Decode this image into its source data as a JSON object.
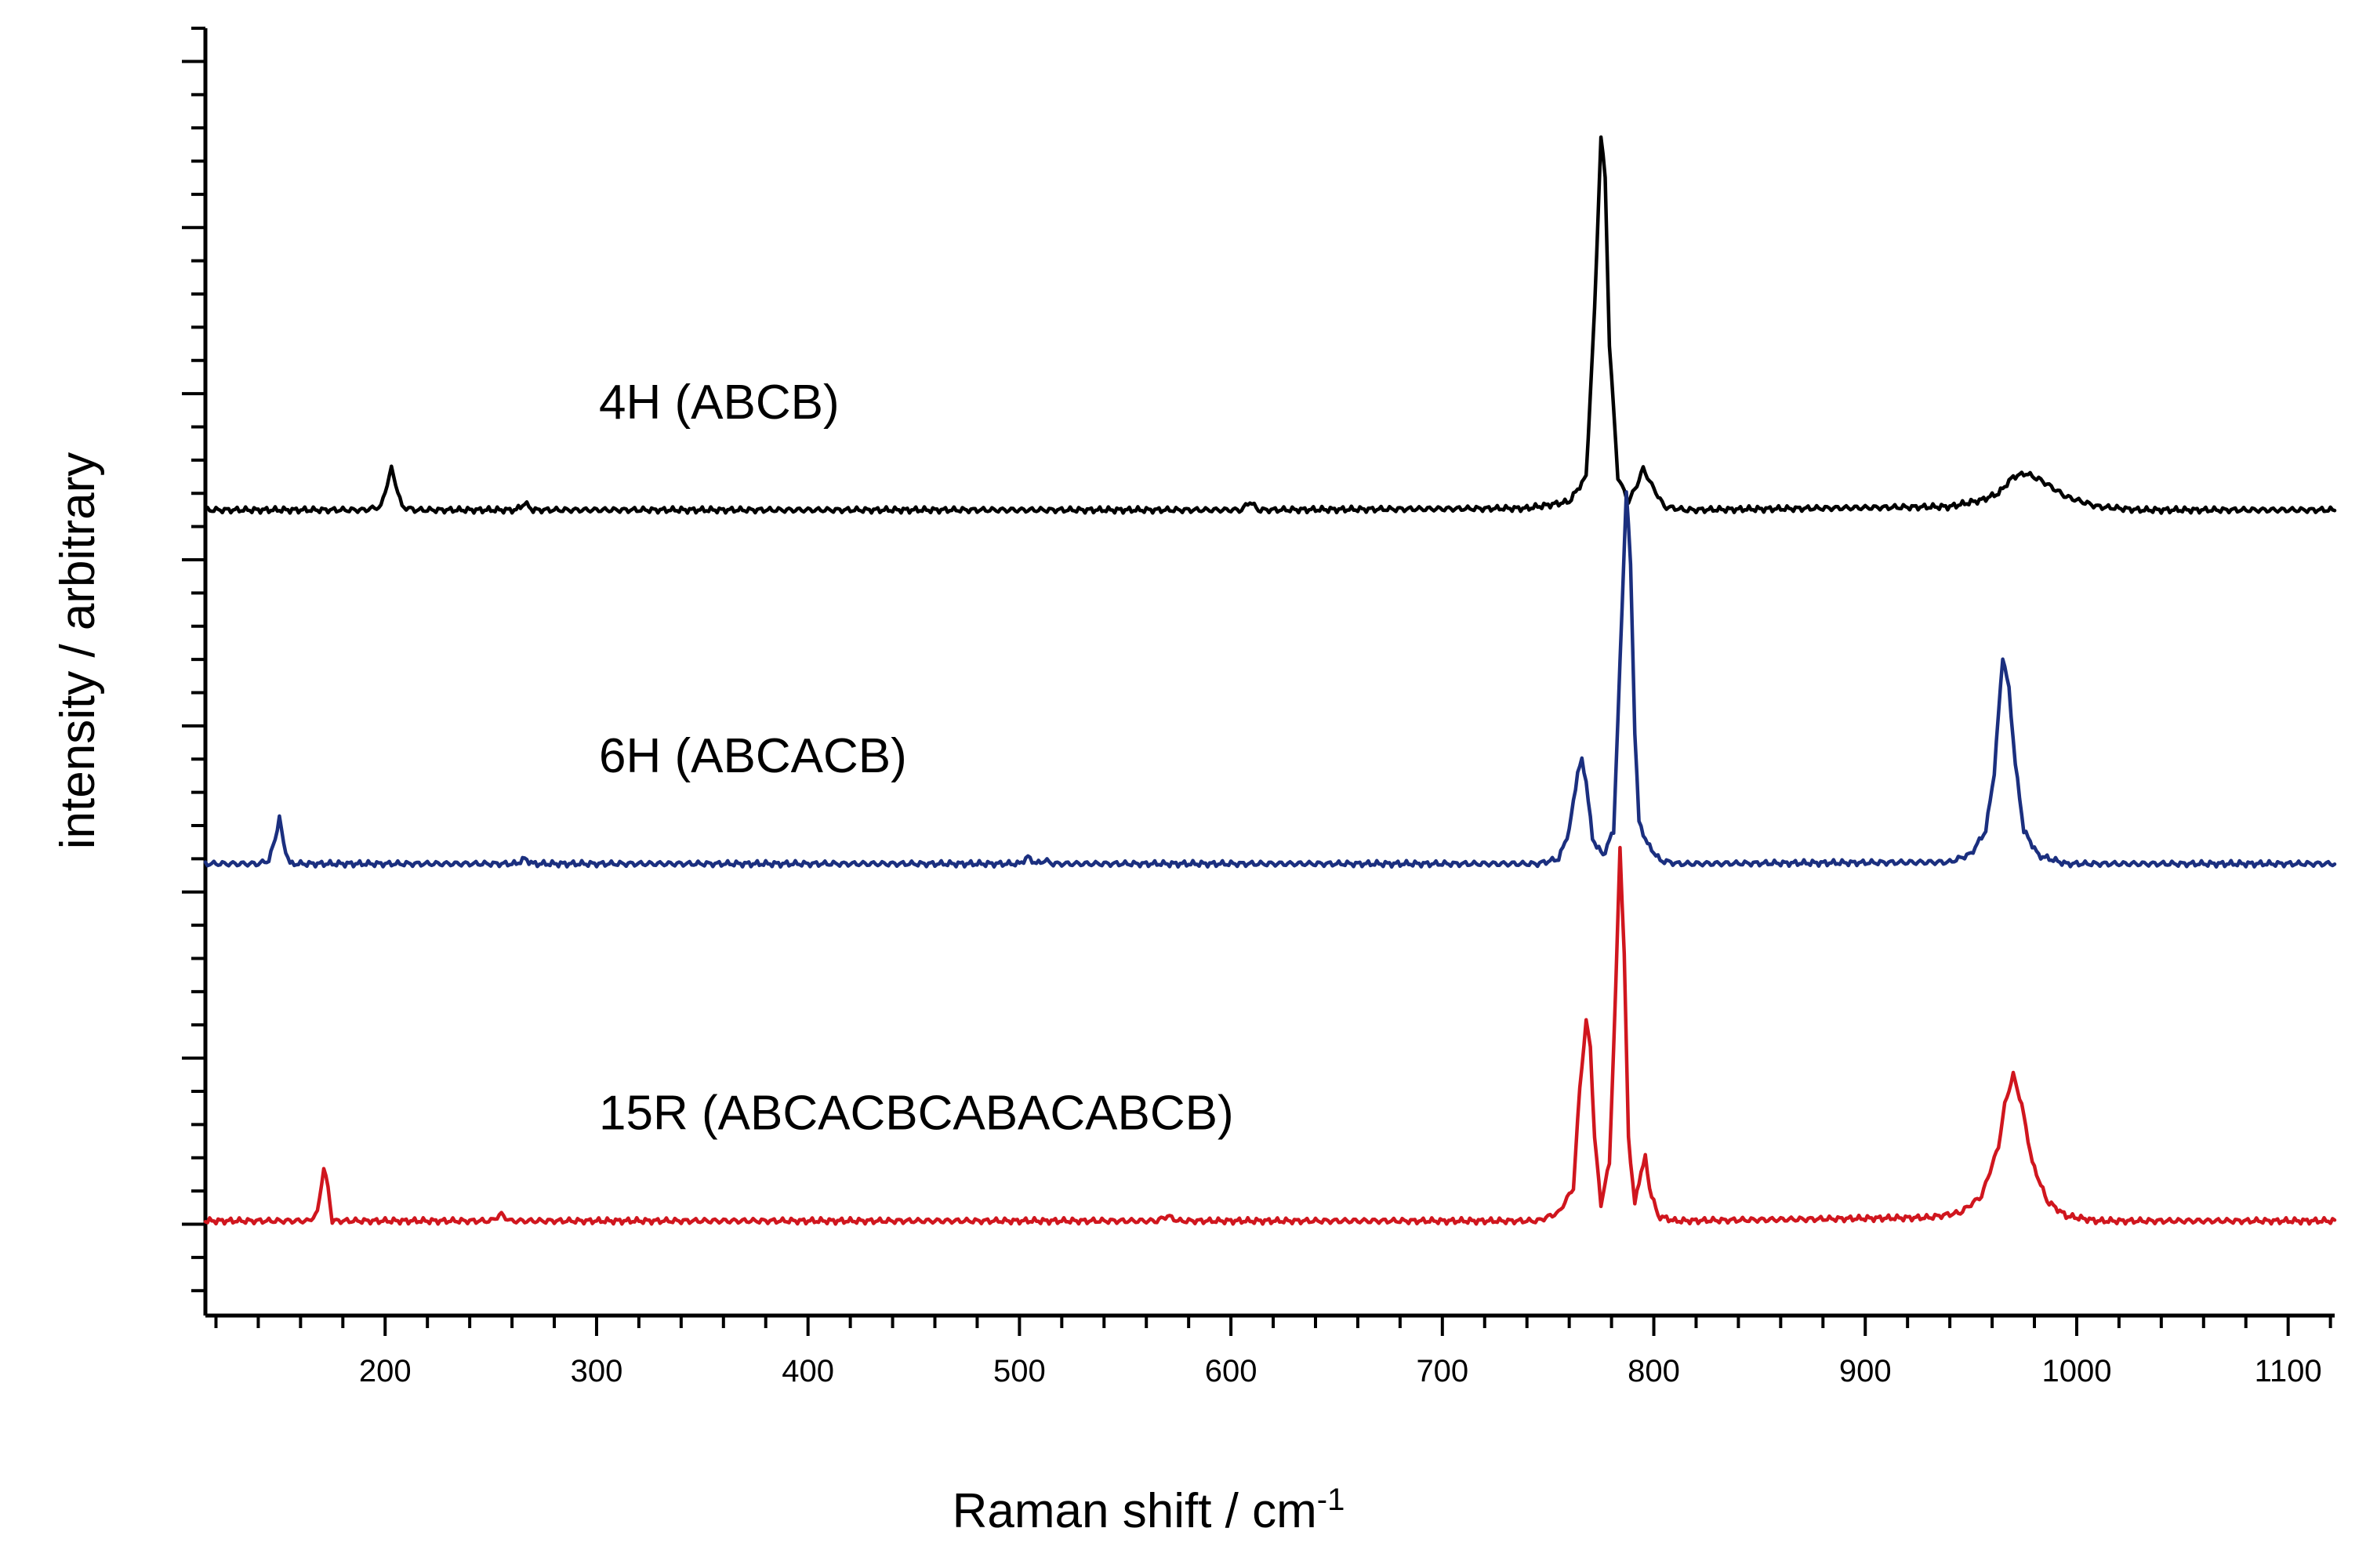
{
  "chart_data": {
    "type": "line",
    "xlabel": "Raman shift / cm",
    "xlabel_superscript": "-1",
    "ylabel": "intensity / arbitrary",
    "xlim": [
      115,
      1122
    ],
    "ylim": [
      -0.55,
      7.2
    ],
    "x_ticks": [
      200,
      300,
      400,
      500,
      600,
      700,
      800,
      900,
      1000,
      1100
    ],
    "x_tick_labels": [
      "200",
      "300",
      "400",
      "500",
      "600",
      "700",
      "800",
      "900",
      "1000",
      "1100"
    ],
    "x_minor_step": 20,
    "y_major_step": 1,
    "y_minor_step": 0.2,
    "y_ticks_labeled": false,
    "grid": false,
    "legend": "none",
    "series": [
      {
        "name": "4H (ABCB)",
        "color": "#000000",
        "baseline": 4.3,
        "points": [
          [
            115,
            0
          ],
          [
            190,
            0
          ],
          [
            198,
            0.02
          ],
          [
            203,
            0.25
          ],
          [
            208,
            0.02
          ],
          [
            214,
            0
          ],
          [
            262,
            0
          ],
          [
            266,
            0.04
          ],
          [
            270,
            0
          ],
          [
            605,
            0
          ],
          [
            609,
            0.05
          ],
          [
            613,
            0
          ],
          [
            740,
            0.01
          ],
          [
            760,
            0.05
          ],
          [
            768,
            0.2
          ],
          [
            772,
            1.2
          ],
          [
            775,
            2.25
          ],
          [
            777,
            2.0
          ],
          [
            779,
            1.0
          ],
          [
            783,
            0.2
          ],
          [
            788,
            0.05
          ],
          [
            792,
            0.15
          ],
          [
            795,
            0.25
          ],
          [
            799,
            0.15
          ],
          [
            805,
            0.02
          ],
          [
            815,
            0
          ],
          [
            940,
            0.02
          ],
          [
            955,
            0.06
          ],
          [
            963,
            0.1
          ],
          [
            970,
            0.2
          ],
          [
            976,
            0.22
          ],
          [
            983,
            0.18
          ],
          [
            995,
            0.08
          ],
          [
            1010,
            0.02
          ],
          [
            1030,
            0
          ],
          [
            1122,
            0
          ]
        ]
      },
      {
        "name": "6H (ABCACB)",
        "color": "#1b2f7f",
        "baseline": 2.17,
        "points": [
          [
            115,
            0
          ],
          [
            140,
            0
          ],
          [
            145,
            0.02
          ],
          [
            148,
            0.15
          ],
          [
            150,
            0.28
          ],
          [
            152,
            0.12
          ],
          [
            155,
            0
          ],
          [
            262,
            0
          ],
          [
            266,
            0.03
          ],
          [
            270,
            0
          ],
          [
            500,
            0
          ],
          [
            504,
            0.04
          ],
          [
            508,
            0
          ],
          [
            512,
            0.02
          ],
          [
            516,
            0
          ],
          [
            745,
            0
          ],
          [
            755,
            0.03
          ],
          [
            760,
            0.2
          ],
          [
            764,
            0.55
          ],
          [
            766,
            0.62
          ],
          [
            768,
            0.5
          ],
          [
            771,
            0.15
          ],
          [
            776,
            0.05
          ],
          [
            781,
            0.2
          ],
          [
            784,
            1.2
          ],
          [
            787,
            2.25
          ],
          [
            789,
            1.8
          ],
          [
            791,
            0.8
          ],
          [
            793,
            0.25
          ],
          [
            797,
            0.12
          ],
          [
            803,
            0.02
          ],
          [
            812,
            0
          ],
          [
            940,
            0.01
          ],
          [
            950,
            0.06
          ],
          [
            957,
            0.2
          ],
          [
            961,
            0.55
          ],
          [
            965,
            1.25
          ],
          [
            968,
            1.05
          ],
          [
            971,
            0.6
          ],
          [
            975,
            0.2
          ],
          [
            982,
            0.05
          ],
          [
            995,
            0
          ],
          [
            1122,
            0
          ]
        ]
      },
      {
        "name": "15R (ABCACBCABACABCB)",
        "color": "#d0161e",
        "baseline": 0.02,
        "points": [
          [
            115,
            0
          ],
          [
            164,
            0
          ],
          [
            168,
            0.05
          ],
          [
            171,
            0.32
          ],
          [
            173,
            0.2
          ],
          [
            175,
            0
          ],
          [
            250,
            0
          ],
          [
            255,
            0.04
          ],
          [
            259,
            0
          ],
          [
            565,
            0
          ],
          [
            570,
            0.03
          ],
          [
            575,
            0
          ],
          [
            745,
            0
          ],
          [
            755,
            0.05
          ],
          [
            762,
            0.2
          ],
          [
            765,
            0.8
          ],
          [
            768,
            1.2
          ],
          [
            770,
            1.05
          ],
          [
            772,
            0.5
          ],
          [
            775,
            0.1
          ],
          [
            779,
            0.35
          ],
          [
            782,
            1.4
          ],
          [
            784,
            2.25
          ],
          [
            786,
            1.6
          ],
          [
            788,
            0.5
          ],
          [
            791,
            0.1
          ],
          [
            794,
            0.3
          ],
          [
            796,
            0.38
          ],
          [
            798,
            0.2
          ],
          [
            802,
            0.03
          ],
          [
            810,
            0
          ],
          [
            930,
            0.02
          ],
          [
            945,
            0.05
          ],
          [
            955,
            0.15
          ],
          [
            963,
            0.45
          ],
          [
            966,
            0.7
          ],
          [
            970,
            0.88
          ],
          [
            974,
            0.7
          ],
          [
            979,
            0.35
          ],
          [
            986,
            0.12
          ],
          [
            995,
            0.03
          ],
          [
            1010,
            0
          ],
          [
            1122,
            0
          ]
        ]
      }
    ]
  }
}
